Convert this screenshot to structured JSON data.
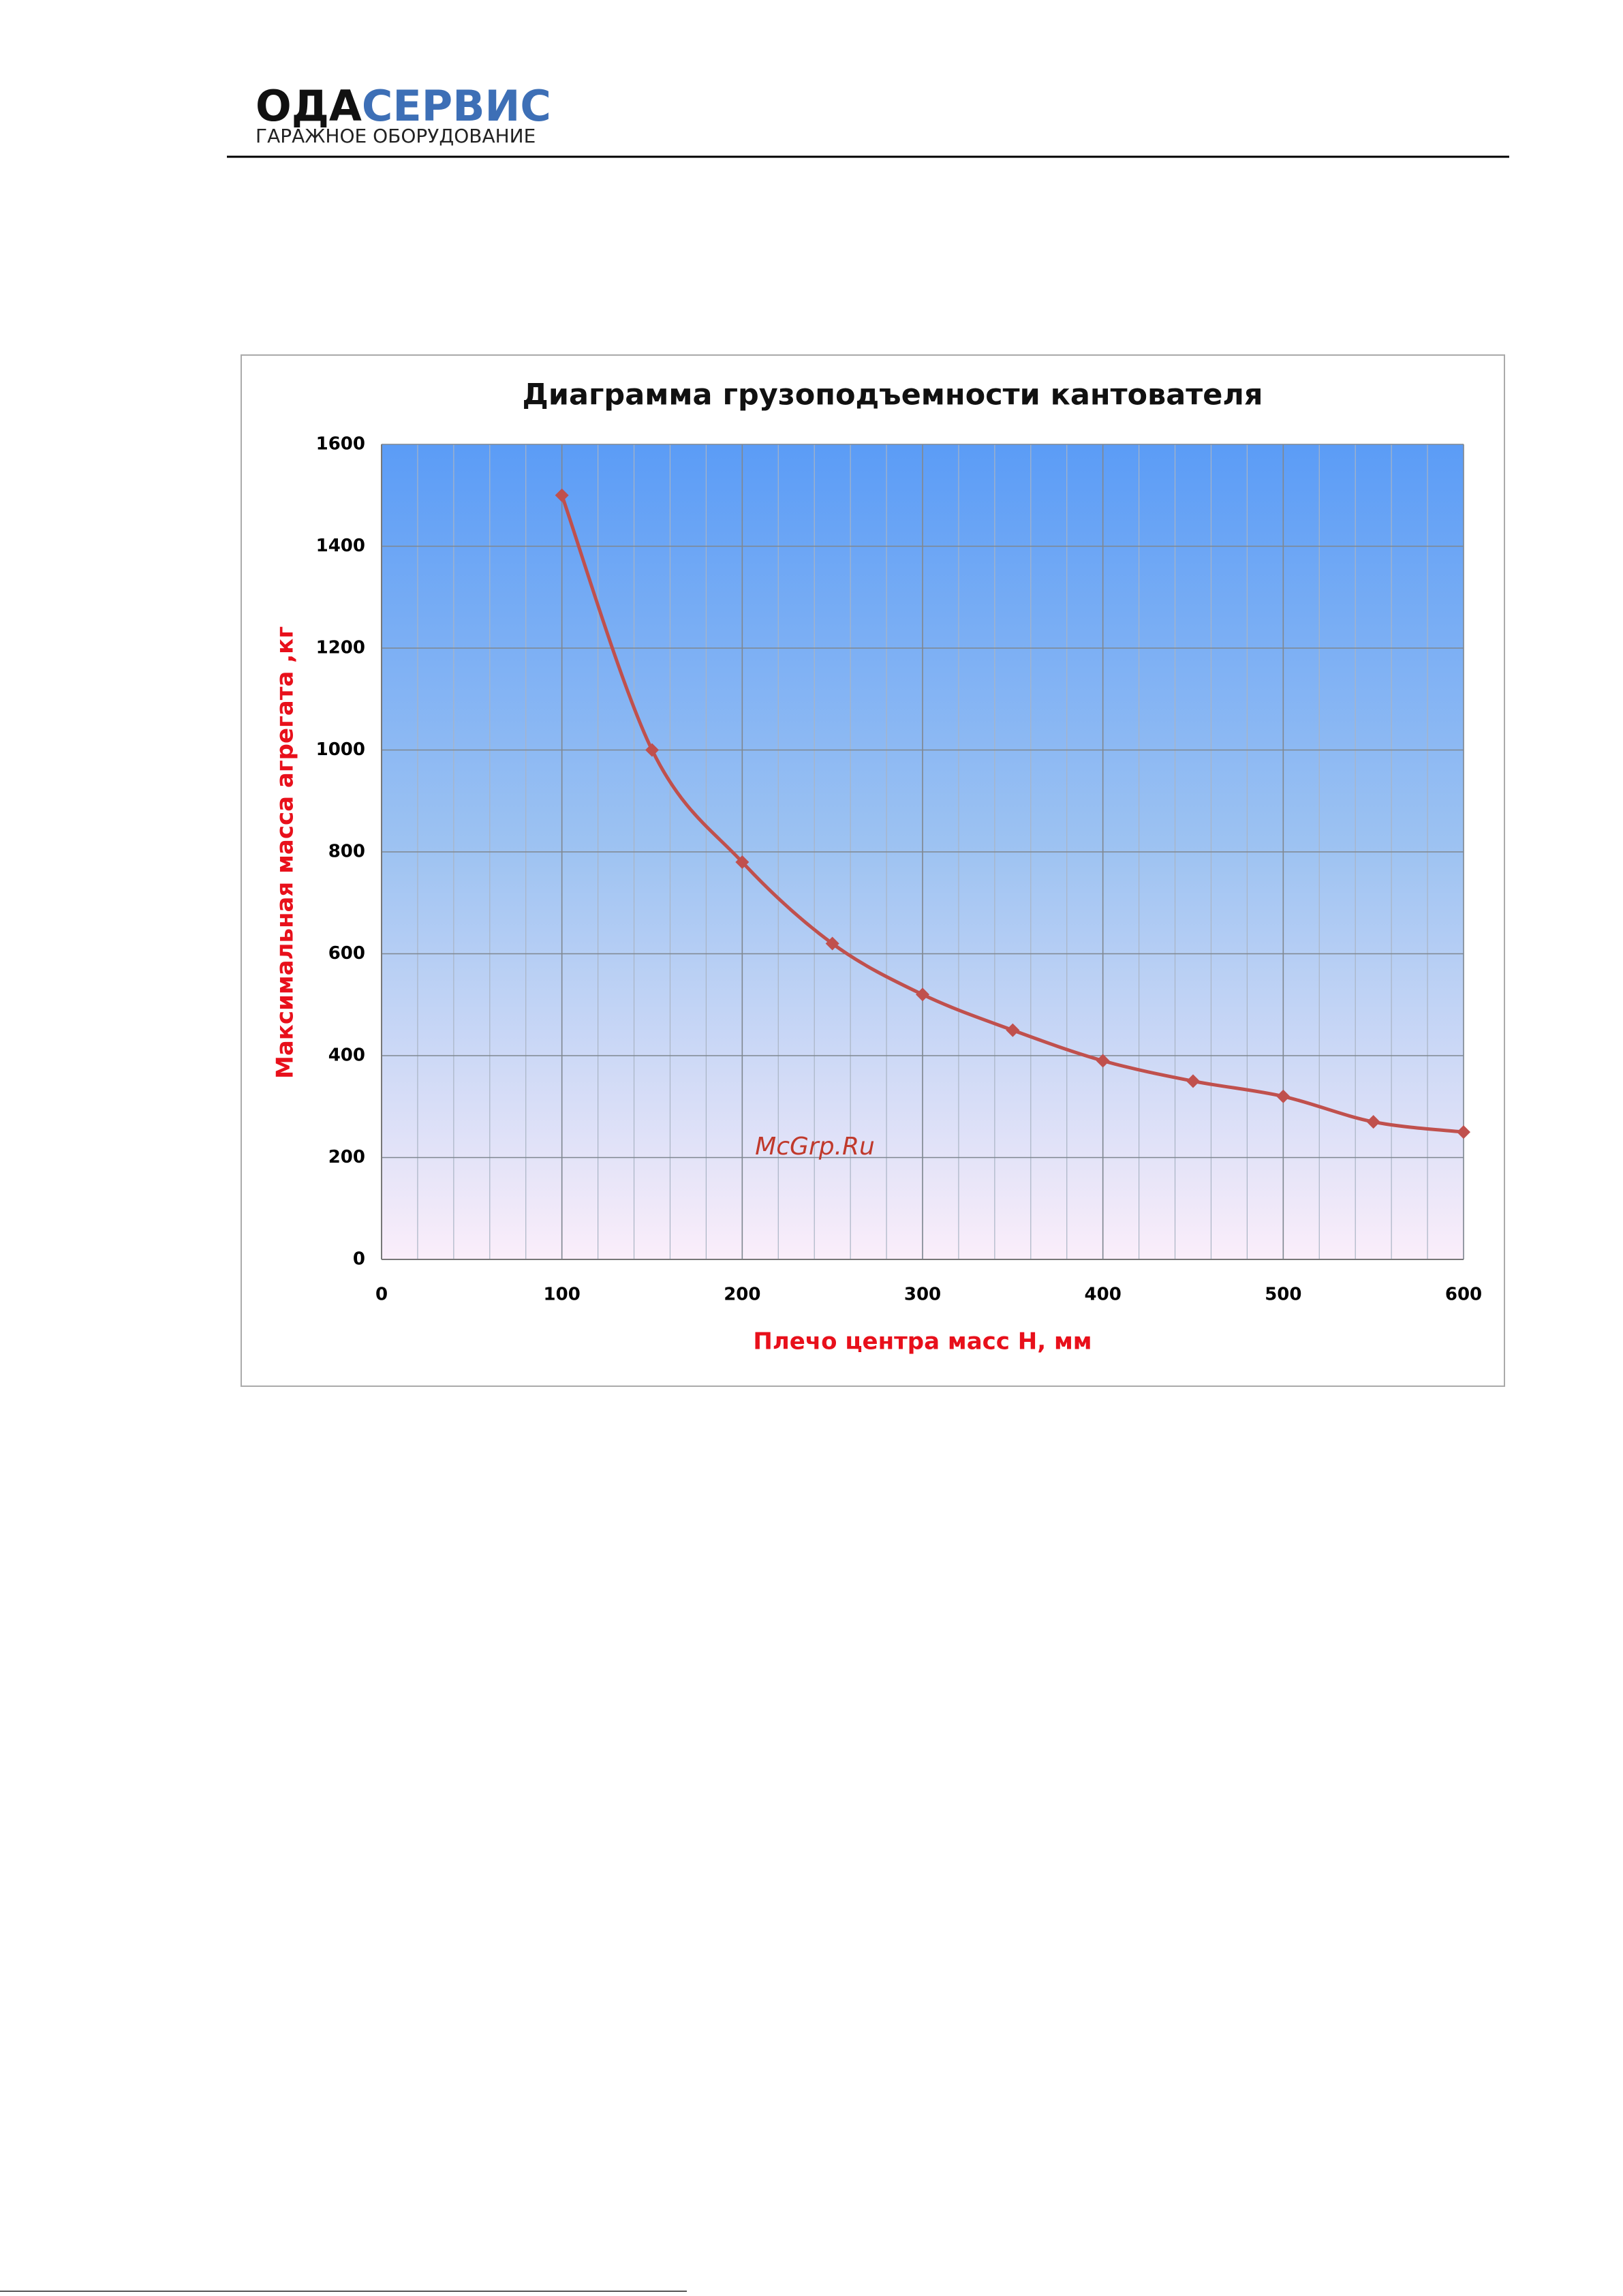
{
  "header": {
    "brand_dark": "ОДА",
    "brand_blue": "СЕРВИС",
    "tagline": "ГАРАЖНОЕ ОБОРУДОВАНИЕ"
  },
  "watermark": "McGrp.Ru",
  "chart_data": {
    "type": "line",
    "title": "Диаграмма грузоподъемности кантователя",
    "x_label": "Плечо  центра масс H, мм",
    "y_label": "Максимальная  масса агрегата ,кг",
    "x": [
      100,
      150,
      200,
      250,
      300,
      350,
      400,
      450,
      500,
      550,
      600
    ],
    "series": [
      {
        "name": "Максимальная масса",
        "color": "#c0504d",
        "values": [
          1500,
          1000,
          780,
          620,
          520,
          450,
          390,
          350,
          320,
          270,
          250
        ]
      }
    ],
    "xlim": [
      0,
      600
    ],
    "xticks": [
      0,
      100,
      200,
      300,
      400,
      500,
      600
    ],
    "ylim": [
      0,
      1600
    ],
    "yticks": [
      0,
      200,
      400,
      600,
      800,
      1000,
      1200,
      1400,
      1600
    ],
    "grid": true,
    "smooth": true
  }
}
